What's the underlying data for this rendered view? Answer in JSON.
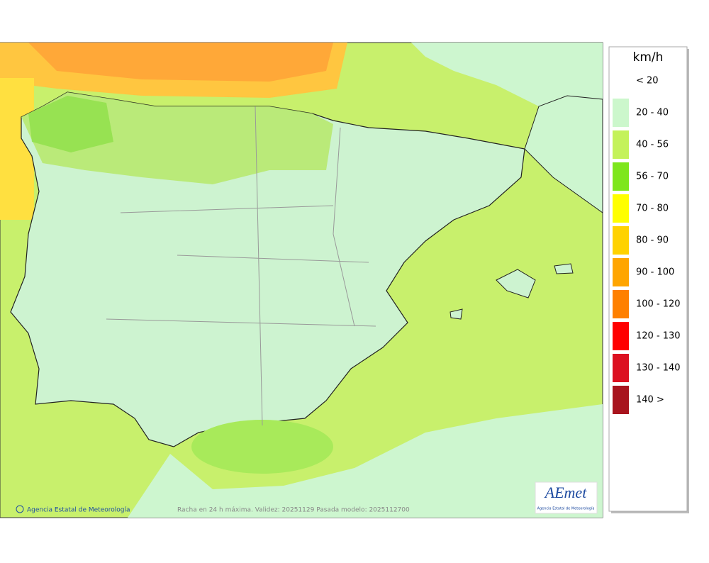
{
  "legend": {
    "unit": "km/h",
    "items": [
      {
        "label": "< 20",
        "color": "#ffffff"
      },
      {
        "label": "20 - 40",
        "color": "#ccf7cc"
      },
      {
        "label": "40 - 56",
        "color": "#c4f25a"
      },
      {
        "label": "56 - 70",
        "color": "#7ee61c"
      },
      {
        "label": "70 - 80",
        "color": "#ffff00"
      },
      {
        "label": "80 - 90",
        "color": "#ffd200"
      },
      {
        "label": "90 - 100",
        "color": "#ffa500"
      },
      {
        "label": "100 - 120",
        "color": "#ff8000"
      },
      {
        "label": "120 - 130",
        "color": "#ff0000"
      },
      {
        "label": "130 - 140",
        "color": "#dc1020"
      },
      {
        "label": "140 >",
        "color": "#a8141e"
      }
    ]
  },
  "footer": {
    "credit": "Agencia Estatal de Meteorología",
    "caption": "Racha en 24 h máxima. Validez: 20251129 Pasada modelo: 2025112700"
  },
  "logo": {
    "name": "AEmet",
    "subtitle": "Agencia Estatal de Meteorología"
  }
}
